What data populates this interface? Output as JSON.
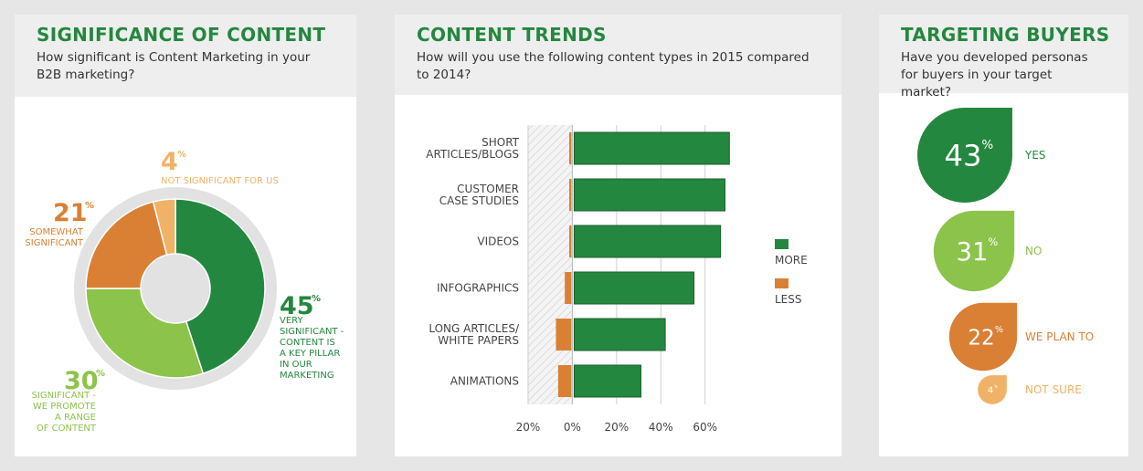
{
  "panels": {
    "significance": {
      "title": "SIGNIFICANCE OF CONTENT",
      "subtitle": "How significant is Content Marketing in your B2B marketing?"
    },
    "trends": {
      "title": "CONTENT TRENDS",
      "subtitle": "How will you use the following content types in 2015 compared to 2014?"
    },
    "targeting": {
      "title": "TARGETING BUYERS",
      "subtitle": "Have you developed personas for buyers in your target market?"
    }
  },
  "colors": {
    "dark_green": "#24873f",
    "light_green": "#8cc34a",
    "orange": "#d98035",
    "light_orange": "#f0b266",
    "ring": "#e2e2e2"
  },
  "chart_data": [
    {
      "type": "pie",
      "slices": [
        {
          "value": 45,
          "label_lines": [
            "VERY",
            "SIGNIFICANT -",
            "CONTENT IS",
            "A KEY PILLAR",
            "IN OUR",
            "MARKETING"
          ],
          "color": "#24873f"
        },
        {
          "value": 30,
          "label_lines": [
            "SIGNIFICANT -",
            "WE PROMOTE",
            "A RANGE",
            "OF CONTENT"
          ],
          "color": "#8cc34a"
        },
        {
          "value": 21,
          "label_lines": [
            "SOMEWHAT",
            "SIGNIFICANT"
          ],
          "color": "#d98035"
        },
        {
          "value": 4,
          "label_lines": [
            "NOT SIGNIFICANT FOR US"
          ],
          "color": "#f0b266"
        }
      ],
      "unit": "%"
    },
    {
      "type": "bar",
      "orientation": "horizontal",
      "categories": [
        [
          "SHORT",
          "ARTICLES/BLOGS"
        ],
        [
          "CUSTOMER",
          "CASE STUDIES"
        ],
        [
          "VIDEOS"
        ],
        [
          "INFOGRAPHICS"
        ],
        [
          "LONG ARTICLES/",
          "WHITE PAPERS"
        ],
        [
          "ANIMATIONS"
        ]
      ],
      "series": [
        {
          "name": "MORE",
          "color": "#24873f",
          "values": [
            71,
            69,
            67,
            55,
            42,
            31
          ]
        },
        {
          "name": "LESS",
          "color": "#d98035",
          "values": [
            1,
            1,
            1,
            3,
            7,
            6
          ]
        }
      ],
      "xticks": [
        "20%",
        "0%",
        "20%",
        "40%",
        "60%"
      ],
      "xtick_values": [
        -20,
        0,
        20,
        40,
        60
      ],
      "xlim": [
        -20,
        75
      ],
      "legend_position": "right"
    },
    {
      "type": "bubble",
      "items": [
        {
          "value": 43,
          "label": "YES",
          "color": "#24873f"
        },
        {
          "value": 31,
          "label": "NO",
          "color": "#8cc34a"
        },
        {
          "value": 22,
          "label": "WE PLAN TO",
          "color": "#d98035"
        },
        {
          "value": 4,
          "label": "NOT SURE",
          "color": "#f0b266"
        }
      ],
      "unit": "%"
    }
  ]
}
